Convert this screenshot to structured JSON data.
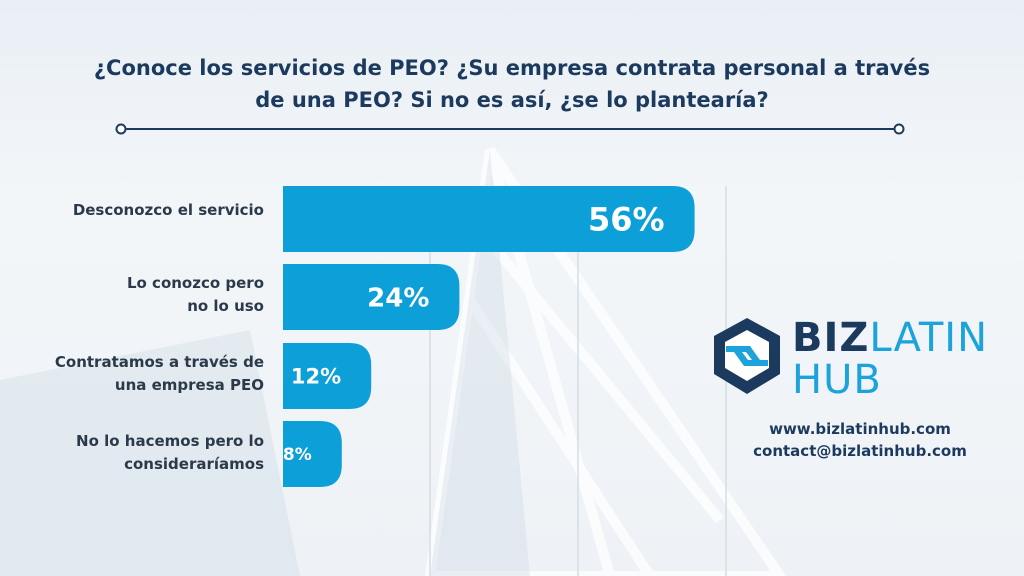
{
  "title": "¿Conoce los servicios de PEO? ¿Su empresa contrata personal a través de una PEO? Si no es así, ¿se lo plantearía?",
  "title_lines": [
    "¿Conoce los servicios de PEO? ¿Su empresa contrata personal a través",
    "de una PEO? Si no es así, ¿se lo plantearía?"
  ],
  "logo": {
    "word1": "BIZ",
    "word2": "LATIN",
    "word3": "HUB"
  },
  "contact": {
    "website": "www.bizlatinhub.com",
    "email": "contact@bizlatinhub.com"
  },
  "colors": {
    "bar": "#0d9fd8",
    "title": "#1c3a5e",
    "label": "#2b3a4a",
    "accent": "#1ca3dc"
  },
  "chart_data": {
    "type": "bar",
    "orientation": "horizontal",
    "categories": [
      "Desconozco el servicio",
      "Lo conozco pero\nno lo uso",
      "Contratamos a través de\nuna empresa PEO",
      "No lo hacemos pero lo\nconsideraríamos"
    ],
    "values": [
      56,
      24,
      12,
      8
    ],
    "data_labels": [
      "56%",
      "24%",
      "12%",
      "8%"
    ],
    "xlim": [
      0,
      100
    ],
    "grid": true
  }
}
